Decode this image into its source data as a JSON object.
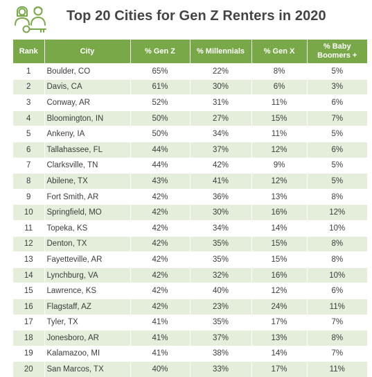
{
  "title": "Top 20 Cities for Gen Z Renters in 2020",
  "colors": {
    "accent": "#79a849",
    "stripe": "#e4eedb",
    "title": "#444444"
  },
  "logo_icon": "people-with-key-icon",
  "chart_data": {
    "type": "table",
    "title": "Top 20 Cities for Gen Z Renters in 2020",
    "columns": [
      "Rank",
      "City",
      "% Gen Z",
      "% Millennials",
      "% Gen X",
      "% Baby Boomers +"
    ],
    "rows": [
      [
        "1",
        "Boulder, CO",
        "65%",
        "22%",
        "8%",
        "5%"
      ],
      [
        "2",
        "Davis, CA",
        "61%",
        "30%",
        "6%",
        "3%"
      ],
      [
        "3",
        "Conway, AR",
        "52%",
        "31%",
        "11%",
        "6%"
      ],
      [
        "4",
        "Bloomington, IN",
        "50%",
        "27%",
        "15%",
        "7%"
      ],
      [
        "5",
        "Ankeny, IA",
        "50%",
        "34%",
        "11%",
        "5%"
      ],
      [
        "6",
        "Tallahassee, FL",
        "44%",
        "37%",
        "12%",
        "6%"
      ],
      [
        "7",
        "Clarksville, TN",
        "44%",
        "42%",
        "9%",
        "5%"
      ],
      [
        "8",
        "Abilene, TX",
        "43%",
        "41%",
        "12%",
        "5%"
      ],
      [
        "9",
        "Fort Smith, AR",
        "42%",
        "36%",
        "13%",
        "8%"
      ],
      [
        "10",
        "Springfield, MO",
        "42%",
        "30%",
        "16%",
        "12%"
      ],
      [
        "11",
        "Topeka, KS",
        "42%",
        "34%",
        "14%",
        "10%"
      ],
      [
        "12",
        "Denton, TX",
        "42%",
        "35%",
        "15%",
        "8%"
      ],
      [
        "13",
        "Fayetteville, AR",
        "42%",
        "35%",
        "15%",
        "8%"
      ],
      [
        "14",
        "Lynchburg, VA",
        "42%",
        "32%",
        "16%",
        "10%"
      ],
      [
        "15",
        "Lawrence, KS",
        "42%",
        "40%",
        "12%",
        "6%"
      ],
      [
        "16",
        "Flagstaff, AZ",
        "42%",
        "23%",
        "24%",
        "11%"
      ],
      [
        "17",
        "Tyler, TX",
        "41%",
        "35%",
        "17%",
        "7%"
      ],
      [
        "18",
        "Jonesboro, AR",
        "41%",
        "37%",
        "13%",
        "8%"
      ],
      [
        "19",
        "Kalamazoo, MI",
        "41%",
        "38%",
        "14%",
        "7%"
      ],
      [
        "20",
        "San Marcos, TX",
        "40%",
        "33%",
        "17%",
        "11%"
      ]
    ]
  }
}
